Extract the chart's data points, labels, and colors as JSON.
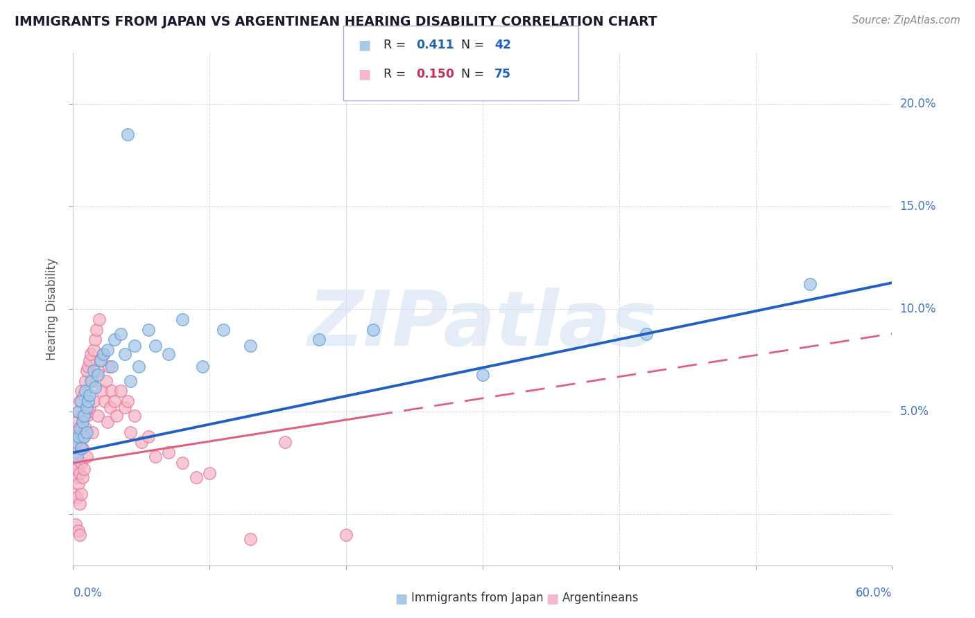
{
  "title": "IMMIGRANTS FROM JAPAN VS ARGENTINEAN HEARING DISABILITY CORRELATION CHART",
  "source": "Source: ZipAtlas.com",
  "ylabel": "Hearing Disability",
  "watermark": "ZIPatlas",
  "xlim": [
    0.0,
    0.6
  ],
  "ylim": [
    -0.025,
    0.225
  ],
  "series1_name": "Immigrants from Japan",
  "series1_R": "0.411",
  "series1_N": "42",
  "series1_color": "#a8c8e8",
  "series1_edge": "#5b9bd5",
  "series2_name": "Argentineans",
  "series2_R": "0.150",
  "series2_N": "75",
  "series2_color": "#f4b8c8",
  "series2_edge": "#e8709a",
  "trend1_color": "#2060c0",
  "trend2_color": "#e06080",
  "trend1_intercept": 0.03,
  "trend1_slope": 0.138,
  "trend2_intercept": 0.025,
  "trend2_slope": 0.105,
  "title_color": "#1a1a2e",
  "axis_label_color": "#4472c4",
  "source_color": "#888888",
  "background_color": "#ffffff",
  "legend_R_color1": "#2166ac",
  "legend_R_color2": "#c0305a",
  "legend_N_color": "#2060c0",
  "grid_color": "#cccccc"
}
